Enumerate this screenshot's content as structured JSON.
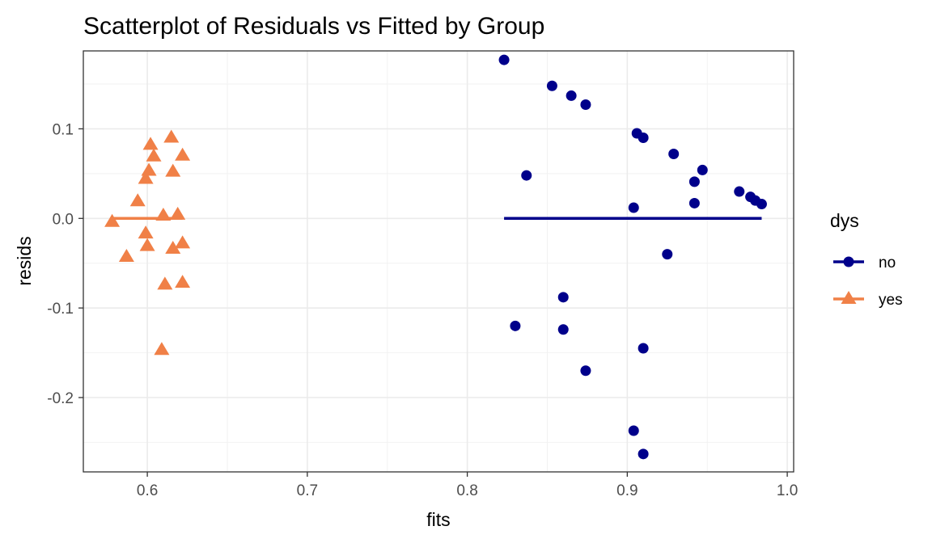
{
  "chart_data": {
    "type": "scatter",
    "title": "Scatterplot of Residuals vs Fitted by Group",
    "xlabel": "fits",
    "ylabel": "resids",
    "xlim": [
      0.56,
      1.004
    ],
    "ylim": [
      -0.283,
      0.187
    ],
    "x_ticks": [
      0.6,
      0.7,
      0.8,
      0.9,
      1.0
    ],
    "x_tick_labels": [
      "0.6",
      "0.7",
      "0.8",
      "0.9",
      "1.0"
    ],
    "y_ticks": [
      -0.2,
      -0.1,
      0.0,
      0.1
    ],
    "y_tick_labels": [
      "-0.2",
      "-0.1",
      "0.0",
      "0.1"
    ],
    "grid": true,
    "legend": {
      "title": "dys",
      "position": "right"
    },
    "series": [
      {
        "name": "no",
        "marker": "circle",
        "color": "#00008b",
        "mean_line": {
          "x": [
            0.823,
            0.984
          ],
          "y": 0.0
        },
        "points": [
          [
            0.823,
            0.177
          ],
          [
            0.853,
            0.148
          ],
          [
            0.865,
            0.137
          ],
          [
            0.874,
            0.127
          ],
          [
            0.906,
            0.095
          ],
          [
            0.91,
            0.09
          ],
          [
            0.929,
            0.072
          ],
          [
            0.837,
            0.048
          ],
          [
            0.947,
            0.054
          ],
          [
            0.942,
            0.041
          ],
          [
            0.97,
            0.03
          ],
          [
            0.977,
            0.024
          ],
          [
            0.98,
            0.02
          ],
          [
            0.984,
            0.016
          ],
          [
            0.942,
            0.017
          ],
          [
            0.904,
            0.012
          ],
          [
            0.925,
            -0.04
          ],
          [
            0.86,
            -0.088
          ],
          [
            0.83,
            -0.12
          ],
          [
            0.86,
            -0.124
          ],
          [
            0.91,
            -0.145
          ],
          [
            0.874,
            -0.17
          ],
          [
            0.904,
            -0.237
          ],
          [
            0.91,
            -0.263
          ]
        ]
      },
      {
        "name": "yes",
        "marker": "triangle",
        "color": "#f08047",
        "mean_line": {
          "x": [
            0.578,
            0.622
          ],
          "y": 0.0
        },
        "points": [
          [
            0.615,
            0.09
          ],
          [
            0.602,
            0.082
          ],
          [
            0.604,
            0.069
          ],
          [
            0.622,
            0.07
          ],
          [
            0.601,
            0.053
          ],
          [
            0.616,
            0.052
          ],
          [
            0.599,
            0.044
          ],
          [
            0.594,
            0.019
          ],
          [
            0.61,
            0.003
          ],
          [
            0.619,
            0.004
          ],
          [
            0.578,
            -0.004
          ],
          [
            0.599,
            -0.017
          ],
          [
            0.6,
            -0.031
          ],
          [
            0.616,
            -0.034
          ],
          [
            0.622,
            -0.028
          ],
          [
            0.587,
            -0.043
          ],
          [
            0.611,
            -0.074
          ],
          [
            0.622,
            -0.072
          ],
          [
            0.609,
            -0.147
          ]
        ]
      }
    ]
  }
}
